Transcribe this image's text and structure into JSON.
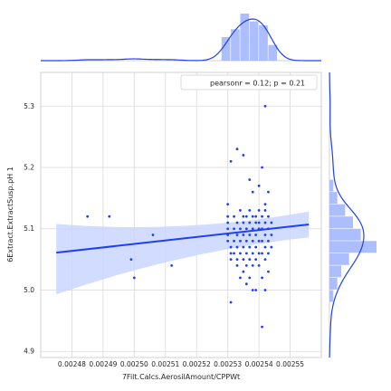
{
  "chart_data": {
    "type": "scatter",
    "title": "",
    "xlabel": "7Filt.Calcs.AerosilAmount/CPPWt",
    "ylabel": "6Extract.ExtractSusp.pH 1",
    "xlim": [
      0.00247,
      0.00256
    ],
    "ylim": [
      4.89,
      5.355
    ],
    "x_ticks": [
      0.00248,
      0.00249,
      0.0025,
      0.00251,
      0.00252,
      0.00253,
      0.00254,
      0.00255
    ],
    "x_tick_labels": [
      "0.00248",
      "0.00249",
      "0.00250",
      "0.00251",
      "0.00252",
      "0.00253",
      "0.00254",
      "0.00255"
    ],
    "y_ticks": [
      4.9,
      5.0,
      5.1,
      5.2,
      5.3
    ],
    "y_tick_labels": [
      "4.9",
      "5.0",
      "5.1",
      "5.2",
      "5.3"
    ],
    "grid": true,
    "legend_position": "top-right",
    "annotation": "pearsonr = 0.12; p = 0.21",
    "regression": {
      "x_range": [
        0.002475,
        0.002556
      ],
      "y_at_start": 5.061,
      "y_at_end": 5.107,
      "ci_upper_start": 5.108,
      "ci_lower_start": 4.993,
      "ci_upper_mid": 5.095,
      "ci_lower_mid": 5.076,
      "ci_upper_end": 5.128,
      "ci_lower_end": 5.086
    },
    "points": [
      [
        0.002485,
        5.12
      ],
      [
        0.002492,
        5.12
      ],
      [
        0.002499,
        5.05
      ],
      [
        0.0025,
        5.02
      ],
      [
        0.002506,
        5.09
      ],
      [
        0.002512,
        5.04
      ],
      [
        0.00253,
        5.14
      ],
      [
        0.002531,
        5.21
      ],
      [
        0.002531,
        4.98
      ],
      [
        0.002533,
        5.23
      ],
      [
        0.002535,
        5.22
      ],
      [
        0.002537,
        5.18
      ],
      [
        0.002538,
        5.16
      ],
      [
        0.002539,
        5.11
      ],
      [
        0.002541,
        5.2
      ],
      [
        0.002542,
        5.3
      ],
      [
        0.002541,
        4.94
      ],
      [
        0.00254,
        5.17
      ],
      [
        0.002542,
        5.13
      ],
      [
        0.002543,
        5.03
      ],
      [
        0.002538,
        5.0
      ],
      [
        0.00253,
        5.12
      ],
      [
        0.00253,
        5.11
      ],
      [
        0.00253,
        5.1
      ],
      [
        0.00253,
        5.09
      ],
      [
        0.00253,
        5.08
      ],
      [
        0.002531,
        5.07
      ],
      [
        0.002531,
        5.06
      ],
      [
        0.002531,
        5.05
      ],
      [
        0.002532,
        5.12
      ],
      [
        0.002532,
        5.1
      ],
      [
        0.002532,
        5.08
      ],
      [
        0.002532,
        5.06
      ],
      [
        0.002533,
        5.11
      ],
      [
        0.002533,
        5.09
      ],
      [
        0.002533,
        5.07
      ],
      [
        0.002533,
        5.05
      ],
      [
        0.002533,
        5.04
      ],
      [
        0.002534,
        5.13
      ],
      [
        0.002534,
        5.1
      ],
      [
        0.002534,
        5.08
      ],
      [
        0.002534,
        5.06
      ],
      [
        0.002534,
        5.02
      ],
      [
        0.002535,
        5.12
      ],
      [
        0.002535,
        5.11
      ],
      [
        0.002535,
        5.09
      ],
      [
        0.002535,
        5.07
      ],
      [
        0.002535,
        5.05
      ],
      [
        0.002535,
        5.03
      ],
      [
        0.002536,
        5.12
      ],
      [
        0.002536,
        5.1
      ],
      [
        0.002536,
        5.08
      ],
      [
        0.002536,
        5.06
      ],
      [
        0.002536,
        5.04
      ],
      [
        0.002536,
        5.01
      ],
      [
        0.002537,
        5.13
      ],
      [
        0.002537,
        5.11
      ],
      [
        0.002537,
        5.09
      ],
      [
        0.002537,
        5.07
      ],
      [
        0.002537,
        5.05
      ],
      [
        0.002537,
        5.02
      ],
      [
        0.002538,
        5.12
      ],
      [
        0.002538,
        5.1
      ],
      [
        0.002538,
        5.08
      ],
      [
        0.002538,
        5.06
      ],
      [
        0.002538,
        5.04
      ],
      [
        0.002539,
        5.12
      ],
      [
        0.002539,
        5.09
      ],
      [
        0.002539,
        5.07
      ],
      [
        0.002539,
        5.05
      ],
      [
        0.002539,
        5.0
      ],
      [
        0.00254,
        5.13
      ],
      [
        0.00254,
        5.11
      ],
      [
        0.00254,
        5.1
      ],
      [
        0.00254,
        5.08
      ],
      [
        0.00254,
        5.06
      ],
      [
        0.00254,
        5.04
      ],
      [
        0.002541,
        5.12
      ],
      [
        0.002541,
        5.1
      ],
      [
        0.002541,
        5.08
      ],
      [
        0.002541,
        5.06
      ],
      [
        0.002541,
        5.02
      ],
      [
        0.002542,
        5.14
      ],
      [
        0.002542,
        5.11
      ],
      [
        0.002542,
        5.09
      ],
      [
        0.002542,
        5.07
      ],
      [
        0.002542,
        5.05
      ],
      [
        0.002542,
        5.0
      ],
      [
        0.002543,
        5.16
      ],
      [
        0.002543,
        5.12
      ],
      [
        0.002543,
        5.1
      ],
      [
        0.002543,
        5.08
      ],
      [
        0.002543,
        5.06
      ],
      [
        0.002544,
        5.11
      ],
      [
        0.002544,
        5.09
      ],
      [
        0.002544,
        5.07
      ]
    ],
    "x_marginal_bins": [
      {
        "start": 0.002528,
        "end": 0.002531,
        "count": 6
      },
      {
        "start": 0.002531,
        "end": 0.002534,
        "count": 8
      },
      {
        "start": 0.002534,
        "end": 0.002537,
        "count": 12
      },
      {
        "start": 0.002537,
        "end": 0.00254,
        "count": 10
      },
      {
        "start": 0.00254,
        "end": 0.002543,
        "count": 9
      },
      {
        "start": 0.002543,
        "end": 0.002546,
        "count": 4
      }
    ],
    "y_marginal_bins": [
      {
        "start": 5.16,
        "end": 5.18,
        "count": 1
      },
      {
        "start": 5.14,
        "end": 5.16,
        "count": 2
      },
      {
        "start": 5.12,
        "end": 5.14,
        "count": 4
      },
      {
        "start": 5.1,
        "end": 5.12,
        "count": 6
      },
      {
        "start": 5.08,
        "end": 5.1,
        "count": 8
      },
      {
        "start": 5.06,
        "end": 5.08,
        "count": 12
      },
      {
        "start": 5.04,
        "end": 5.06,
        "count": 5
      },
      {
        "start": 5.02,
        "end": 5.04,
        "count": 3
      },
      {
        "start": 5.0,
        "end": 5.02,
        "count": 2
      },
      {
        "start": 4.98,
        "end": 5.0,
        "count": 1
      }
    ],
    "colors": {
      "points": "#1f3ff5",
      "line": "#1f3ff5",
      "ci_band": "#c9d6ff",
      "hist": "#9fb3ff",
      "grid": "#d9d9d9",
      "axes": "#d0d0d0"
    }
  }
}
